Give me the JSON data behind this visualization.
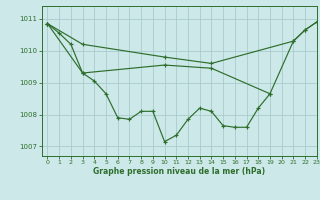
{
  "title": "Graphe pression niveau de la mer (hPa)",
  "bg_color": "#cde8e8",
  "grid_color": "#aacccc",
  "line_color": "#2d6e2d",
  "xlim": [
    -0.5,
    23
  ],
  "ylim": [
    1006.7,
    1011.4
  ],
  "yticks": [
    1007,
    1008,
    1009,
    1010,
    1011
  ],
  "xticks": [
    0,
    1,
    2,
    3,
    4,
    5,
    6,
    7,
    8,
    9,
    10,
    11,
    12,
    13,
    14,
    15,
    16,
    17,
    18,
    19,
    20,
    21,
    22,
    23
  ],
  "s1_x": [
    0,
    1,
    2,
    3,
    4,
    5,
    6,
    7,
    8,
    9,
    10,
    11,
    12,
    13,
    14,
    15,
    16,
    17,
    18,
    19
  ],
  "s1_y": [
    1010.85,
    1010.55,
    1010.2,
    1009.3,
    1009.05,
    1008.65,
    1007.9,
    1007.85,
    1008.1,
    1008.1,
    1007.15,
    1007.35,
    1007.85,
    1008.2,
    1008.1,
    1007.65,
    1007.6,
    1007.6,
    1008.2,
    1008.65
  ],
  "s2_x": [
    0,
    3,
    10,
    14,
    21,
    22,
    23
  ],
  "s2_y": [
    1010.85,
    1010.2,
    1009.8,
    1009.6,
    1010.3,
    1010.65,
    1010.9
  ],
  "s3_x": [
    0,
    3,
    10,
    14,
    19,
    21,
    22,
    23
  ],
  "s3_y": [
    1010.85,
    1009.3,
    1009.55,
    1009.45,
    1008.65,
    1010.3,
    1010.65,
    1010.9
  ]
}
